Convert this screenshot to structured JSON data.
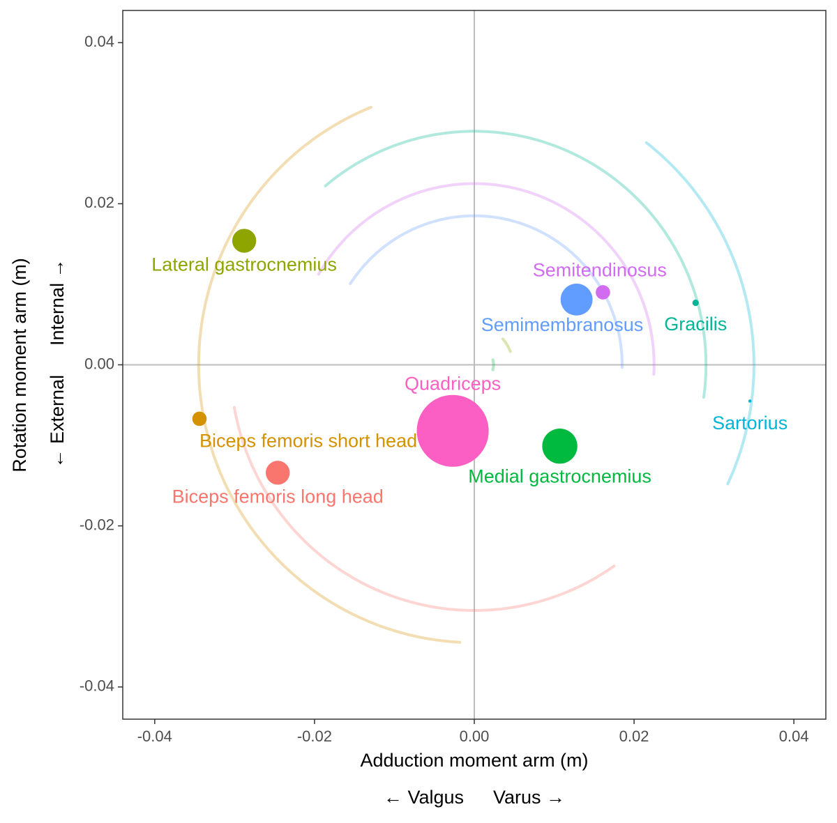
{
  "chart_data": {
    "type": "scatter",
    "xlabel": "Adduction moment arm (m)",
    "ylabel": "Rotation moment arm (m)",
    "x_direction_labels": {
      "negative": "← Valgus",
      "positive": "Varus →"
    },
    "y_direction_labels": {
      "negative": "← External",
      "positive": "Internal →"
    },
    "xlim": [
      -0.044,
      0.044
    ],
    "ylim": [
      -0.044,
      0.044
    ],
    "x_ticks": [
      -0.04,
      -0.02,
      0.0,
      0.02,
      0.04
    ],
    "y_ticks": [
      -0.04,
      -0.02,
      0.0,
      0.02,
      0.04
    ],
    "x_tick_labels": [
      "-0.04",
      "-0.02",
      "0.00",
      "0.02",
      "0.04"
    ],
    "y_tick_labels": [
      "-0.04",
      "-0.02",
      "0.00",
      "0.02",
      "0.04"
    ],
    "grid": false,
    "reference_lines": {
      "x": 0,
      "y": 0
    },
    "legend": "none",
    "points": [
      {
        "label": "Lateral gastrocnemius",
        "x": -0.0288,
        "y": 0.0154,
        "size": 0.0015,
        "color": "#8ea500",
        "label_pos": {
          "x": -0.0288,
          "y": 0.0123,
          "anchor": "middle"
        },
        "arc": {
          "r": 0.0048,
          "start_deg": 20,
          "end_deg": 42
        }
      },
      {
        "label": "Semitendinosus",
        "x": 0.0161,
        "y": 0.009,
        "size": 0.0009,
        "color": "#d16bf0",
        "label_pos": {
          "x": 0.0157,
          "y": 0.0116,
          "anchor": "middle"
        },
        "arc": {
          "r": 0.0225,
          "start_deg": -3,
          "end_deg": 150
        }
      },
      {
        "label": "Semimembranosus",
        "x": 0.0128,
        "y": 0.0081,
        "size": 0.002,
        "color": "#619cff",
        "label_pos": {
          "x": 0.011,
          "y": 0.0048,
          "anchor": "middle"
        },
        "arc": {
          "r": 0.0185,
          "start_deg": -1,
          "end_deg": 147
        }
      },
      {
        "label": "Gracilis",
        "x": 0.0277,
        "y": 0.0077,
        "size": 0.0004,
        "color": "#00b696",
        "label_pos": {
          "x": 0.0277,
          "y": 0.0049,
          "anchor": "middle"
        },
        "arc": {
          "r": 0.029,
          "start_deg": -8,
          "end_deg": 130
        }
      },
      {
        "label": "Sartorius",
        "x": 0.0345,
        "y": -0.0045,
        "size": 0.0002,
        "color": "#00b5d5",
        "label_pos": {
          "x": 0.0345,
          "y": -0.0074,
          "anchor": "middle"
        },
        "arc": {
          "r": 0.035,
          "start_deg": -25,
          "end_deg": 52
        }
      },
      {
        "label": "Quadriceps",
        "x": -0.0027,
        "y": -0.0082,
        "size": 0.0045,
        "color": "#fc5fc4",
        "label_pos": {
          "x": -0.0027,
          "y": -0.0025,
          "anchor": "middle"
        }
      },
      {
        "label": "Medial gastrocnemius",
        "x": 0.0107,
        "y": -0.0101,
        "size": 0.0022,
        "color": "#00b93f",
        "label_pos": {
          "x": 0.0107,
          "y": -0.014,
          "anchor": "middle"
        },
        "arc": {
          "r": 0.0024,
          "start_deg": -15,
          "end_deg": 15
        }
      },
      {
        "label": "Biceps femoris short head",
        "x": -0.0344,
        "y": -0.0067,
        "size": 0.0009,
        "color": "#d49100",
        "label_pos": {
          "x": -0.0344,
          "y": -0.0096,
          "anchor": "start"
        },
        "arc": {
          "r": 0.0345,
          "start_deg": 112,
          "end_deg": 267
        }
      },
      {
        "label": "Biceps femoris long head",
        "x": -0.0246,
        "y": -0.0134,
        "size": 0.0015,
        "color": "#f8766d",
        "label_pos": {
          "x": -0.0246,
          "y": -0.0165,
          "anchor": "middle"
        },
        "arc": {
          "r": 0.0305,
          "start_deg": 190,
          "end_deg": 305
        }
      }
    ]
  }
}
